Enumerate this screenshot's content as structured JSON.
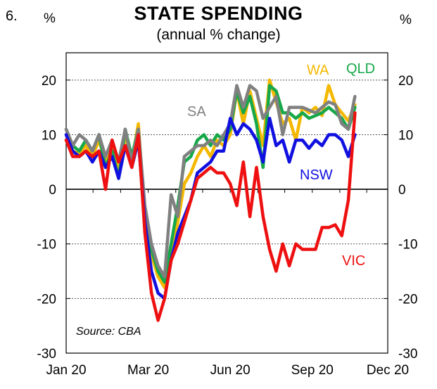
{
  "figure_number": "6.",
  "chart_data": {
    "type": "line",
    "title": "STATE SPENDING",
    "subtitle": "(annual % change)",
    "ylabel_left": "%",
    "ylabel_right": "%",
    "source": "Source: CBA",
    "ylim": [
      -30,
      25
    ],
    "yticks": [
      20,
      10,
      0,
      -10,
      -20,
      -30
    ],
    "ytick_labels": [
      "20",
      "10",
      "0",
      "-10",
      "-20",
      "-30"
    ],
    "x_range_weeks": [
      0,
      49
    ],
    "x_ticks": [
      {
        "label": "Jan 20",
        "week": 0
      },
      {
        "label": "Mar 20",
        "week": 12.5
      },
      {
        "label": "Jun 20",
        "week": 25
      },
      {
        "label": "Sep 20",
        "week": 37.5
      },
      {
        "label": "Dec 20",
        "week": 49
      }
    ],
    "minor_ticks_weeks": [
      4.1,
      8.3,
      16.7,
      20.8,
      29.2,
      33.3,
      41.7,
      45.8
    ],
    "grid": "dashed-horizontal",
    "colors": {
      "NSW": "#1010e0",
      "VIC": "#ee1010",
      "QLD": "#17a84a",
      "WA": "#f5b800",
      "SA": "#808080"
    },
    "series": [
      {
        "name": "WA",
        "label": "WA",
        "color": "#f5b800",
        "x": [
          0,
          1,
          2,
          3,
          4,
          5,
          6,
          7,
          8,
          9,
          10,
          11,
          12,
          13,
          14,
          15,
          16,
          17,
          18,
          19,
          20,
          21,
          22,
          23,
          24,
          25,
          26,
          27,
          28,
          29,
          30,
          31,
          32,
          33,
          34,
          35,
          36,
          37,
          38,
          39,
          40,
          41,
          42,
          43,
          44
        ],
        "values": [
          9,
          7,
          6.5,
          8,
          6,
          9,
          5,
          8,
          3,
          10,
          5,
          12,
          -5,
          -12,
          -16,
          -18,
          -12,
          -6,
          1,
          3,
          6,
          8,
          6,
          9,
          8,
          10,
          18,
          12,
          18,
          13,
          8,
          20,
          16,
          12,
          13,
          9,
          15,
          14,
          15,
          13.5,
          19,
          15.5,
          14,
          12.5,
          15.5
        ]
      },
      {
        "name": "QLD",
        "label": "QLD",
        "color": "#17a84a",
        "x": [
          0,
          1,
          2,
          3,
          4,
          5,
          6,
          7,
          8,
          9,
          10,
          11,
          12,
          13,
          14,
          15,
          16,
          17,
          18,
          19,
          20,
          21,
          22,
          23,
          24,
          25,
          26,
          27,
          28,
          29,
          30,
          31,
          32,
          33,
          34,
          35,
          36,
          37,
          38,
          39,
          40,
          41,
          42,
          43,
          44
        ],
        "values": [
          11,
          8,
          7,
          9,
          7,
          10,
          4,
          7,
          2,
          11,
          6,
          11,
          -4,
          -11,
          -15,
          -17,
          -10,
          -3,
          5,
          6,
          9,
          10,
          8,
          10,
          9,
          11,
          18,
          14,
          17,
          12,
          4,
          19,
          18,
          14,
          14,
          13,
          14,
          13,
          13.5,
          14,
          15,
          14,
          13,
          11,
          15
        ]
      },
      {
        "name": "SA",
        "label": "SA",
        "color": "#808080",
        "x": [
          0,
          1,
          2,
          3,
          4,
          5,
          6,
          7,
          8,
          9,
          10,
          11,
          12,
          13,
          14,
          15,
          16,
          17,
          18,
          19,
          20,
          21,
          22,
          23,
          24,
          25,
          26,
          27,
          28,
          29,
          30,
          31,
          32,
          33,
          34,
          35,
          36,
          37,
          38,
          39,
          40,
          41,
          42,
          43,
          44
        ],
        "values": [
          11,
          8,
          10,
          9,
          7,
          10,
          6,
          9,
          5,
          11,
          5,
          11,
          -3,
          -10,
          -14,
          -16,
          -1,
          -5,
          6,
          7,
          8,
          8,
          9,
          8,
          10,
          12,
          19,
          15,
          19,
          18,
          13,
          15,
          17,
          10,
          15,
          15,
          15,
          14.5,
          14,
          15,
          16,
          15.5,
          12,
          11,
          17
        ]
      },
      {
        "name": "NSW",
        "label": "NSW",
        "color": "#1010e0",
        "x": [
          0,
          1,
          2,
          3,
          4,
          5,
          6,
          7,
          8,
          9,
          10,
          11,
          12,
          13,
          14,
          15,
          16,
          17,
          18,
          19,
          20,
          21,
          22,
          23,
          24,
          25,
          26,
          27,
          28,
          29,
          30,
          31,
          32,
          33,
          34,
          35,
          36,
          37,
          38,
          39,
          40,
          41,
          42,
          43,
          44
        ],
        "values": [
          10,
          7,
          6,
          7,
          5,
          7,
          4,
          6,
          2,
          8,
          4,
          9,
          -6,
          -15,
          -19,
          -20,
          -13,
          -8,
          -5,
          -2,
          3,
          4,
          5,
          7,
          7,
          13,
          10,
          12,
          11,
          9,
          5,
          13,
          8,
          9,
          5,
          9,
          9,
          7.5,
          9,
          8,
          10,
          10,
          9,
          6,
          10
        ]
      },
      {
        "name": "VIC",
        "label": "VIC",
        "color": "#ee1010",
        "x": [
          0,
          1,
          2,
          3,
          4,
          5,
          6,
          7,
          8,
          9,
          10,
          11,
          12,
          13,
          14,
          15,
          16,
          17,
          18,
          19,
          20,
          21,
          22,
          23,
          24,
          25,
          26,
          27,
          28,
          29,
          30,
          31,
          32,
          33,
          34,
          35,
          36,
          37,
          38,
          39,
          40,
          41,
          42,
          43,
          44
        ],
        "values": [
          9,
          6,
          6,
          7,
          6,
          7,
          0,
          9,
          5,
          8,
          4,
          10,
          -8,
          -19,
          -24,
          -20,
          -13,
          -10,
          -6,
          -2,
          2,
          3,
          4,
          3,
          3,
          1,
          -3,
          5,
          -5,
          4,
          -5,
          -11,
          -15,
          -10,
          -14,
          -10,
          -11,
          -11,
          -11,
          -7,
          -7,
          -6.5,
          -8.5,
          -2,
          14
        ]
      }
    ],
    "annotations": [
      {
        "text": "WA",
        "color": "#f5b800"
      },
      {
        "text": "QLD",
        "color": "#17a84a"
      },
      {
        "text": "SA",
        "color": "#808080"
      },
      {
        "text": "NSW",
        "color": "#1010e0"
      },
      {
        "text": "VIC",
        "color": "#ee1010"
      }
    ]
  }
}
